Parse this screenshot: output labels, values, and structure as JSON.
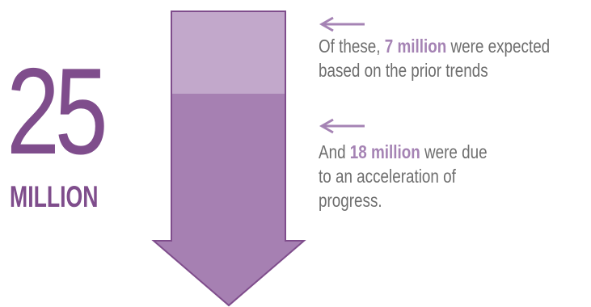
{
  "headline": {
    "number": "25",
    "unit": "MILLION"
  },
  "chart_data": {
    "type": "bar",
    "categories": [
      "expected based on the prior trends",
      "due to an acceleration of progress"
    ],
    "values": [
      7,
      18
    ],
    "total": 25,
    "unit": "million",
    "title": "",
    "xlabel": "",
    "ylabel": ""
  },
  "annotations": [
    {
      "prefix": "Of these, ",
      "highlight": "7 million",
      "line1_suffix": " were expected",
      "line2": "based on the prior trends",
      "line3": ""
    },
    {
      "prefix": "And ",
      "highlight": "18 million",
      "line1_suffix": " were due",
      "line2": "to an acceleration of",
      "line3": "progress."
    }
  ],
  "colors": {
    "headline": "#7f4d8c",
    "segment_top": "#c2a8cb",
    "segment_bottom": "#a680b2",
    "outline": "#7f4d8c",
    "pointer": "#a583b4",
    "highlight": "#a583b4",
    "text": "#6e6e6e"
  }
}
